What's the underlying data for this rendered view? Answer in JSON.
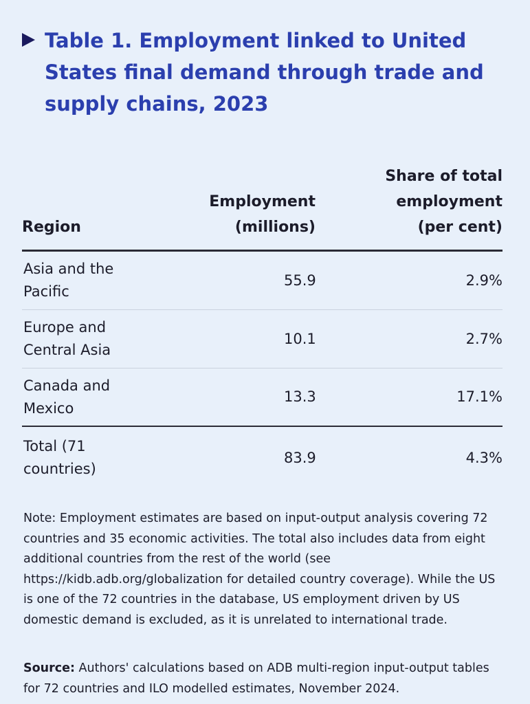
{
  "title": "Table 1. Employment linked to United States final demand through trade and supply chains, 2023",
  "table": {
    "headers": {
      "region": "Region",
      "employment": "Employment (millions)",
      "share": "Share of total employment (per cent)"
    },
    "rows": [
      {
        "region": "Asia and the Pacific",
        "employment": "55.9",
        "share": "2.9%"
      },
      {
        "region": "Europe and Central Asia",
        "employment": "10.1",
        "share": "2.7%"
      },
      {
        "region": "Canada and Mexico",
        "employment": "13.3",
        "share": "17.1%"
      }
    ],
    "total": {
      "region": "Total (71 countries)",
      "employment": "83.9",
      "share": "4.3%"
    }
  },
  "note": "Note: Employment estimates are based on input-output analysis covering 72 countries and 35 economic activities. The total also includes data from eight additional countries from the rest of the world (see https://kidb.adb.org/globalization for detailed country coverage). While the US is one of the 72 countries in the database, US employment driven by US domestic demand is excluded, as it is unrelated to international trade.",
  "source": {
    "label": "Source:",
    "text": " Authors' calculations based on ADB multi-region input-output tables for 72 countries and ILO modelled estimates, November 2024."
  },
  "colors": {
    "background": "#e8f0fa",
    "title": "#2b3fae",
    "arrow": "#1a1a5e",
    "text": "#1c1c2a"
  },
  "icons": {
    "title_marker": "triangle-right-icon"
  }
}
